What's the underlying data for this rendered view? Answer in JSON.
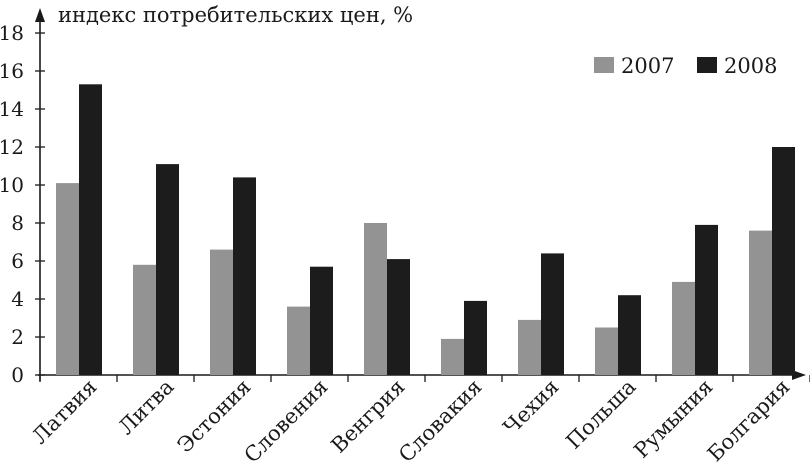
{
  "chart_data": {
    "type": "bar",
    "title": "",
    "ylabel": "индекс потребительских цен, %",
    "xlabel": "",
    "categories": [
      "Латвия",
      "Литва",
      "Эстония",
      "Словения",
      "Венгрия",
      "Словакия",
      "Чехия",
      "Польша",
      "Румыния",
      "Болгария"
    ],
    "series": [
      {
        "name": "2007",
        "color": "#939393",
        "values": [
          10.1,
          5.8,
          6.6,
          3.6,
          8.0,
          1.9,
          2.9,
          2.5,
          4.9,
          7.6
        ]
      },
      {
        "name": "2008",
        "color": "#1c1c1c",
        "values": [
          15.3,
          11.1,
          10.4,
          5.7,
          6.1,
          3.9,
          6.4,
          4.2,
          7.9,
          12.0
        ]
      }
    ],
    "ylim": [
      0,
      18
    ],
    "yticks": [
      0,
      2,
      4,
      6,
      8,
      10,
      12,
      14,
      16,
      18
    ],
    "grid": false,
    "legend_position": "top-right"
  }
}
